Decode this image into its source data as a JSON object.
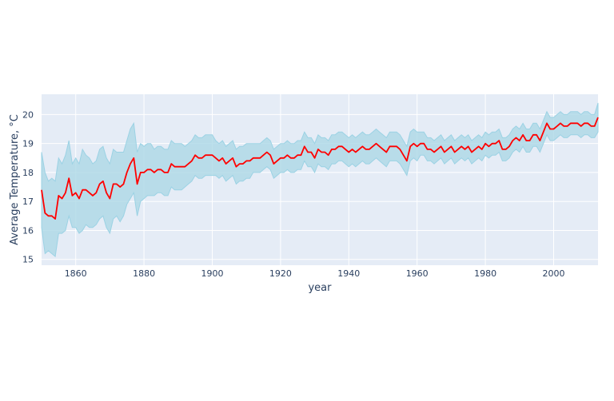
{
  "chart_data": {
    "type": "line",
    "title": "",
    "xlabel": "year",
    "ylabel": "Average Temperature, °C",
    "xlim": [
      1850,
      2013
    ],
    "ylim": [
      14.8,
      20.7
    ],
    "x_ticks": [
      1860,
      1880,
      1900,
      1920,
      1940,
      1960,
      1980,
      2000
    ],
    "y_ticks": [
      15,
      16,
      17,
      18,
      19,
      20
    ],
    "grid": true,
    "legend": "none",
    "colors": {
      "line": "#ff0000",
      "band_fill": "#add8e6",
      "band_edge": "#9bd2e4",
      "plot_bg": "#e5ecf6",
      "grid": "#ffffff"
    },
    "series": [
      {
        "role": "mean",
        "x": [
          1850,
          1851,
          1852,
          1853,
          1854,
          1855,
          1856,
          1857,
          1858,
          1859,
          1860,
          1861,
          1862,
          1863,
          1864,
          1865,
          1866,
          1867,
          1868,
          1869,
          1870,
          1871,
          1872,
          1873,
          1874,
          1875,
          1876,
          1877,
          1878,
          1879,
          1880,
          1881,
          1882,
          1883,
          1884,
          1885,
          1886,
          1887,
          1888,
          1889,
          1890,
          1891,
          1892,
          1893,
          1894,
          1895,
          1896,
          1897,
          1898,
          1899,
          1900,
          1901,
          1902,
          1903,
          1904,
          1905,
          1906,
          1907,
          1908,
          1909,
          1910,
          1911,
          1912,
          1913,
          1914,
          1915,
          1916,
          1917,
          1918,
          1919,
          1920,
          1921,
          1922,
          1923,
          1924,
          1925,
          1926,
          1927,
          1928,
          1929,
          1930,
          1931,
          1932,
          1933,
          1934,
          1935,
          1936,
          1937,
          1938,
          1939,
          1940,
          1941,
          1942,
          1943,
          1944,
          1945,
          1946,
          1947,
          1948,
          1949,
          1950,
          1951,
          1952,
          1953,
          1954,
          1955,
          1956,
          1957,
          1958,
          1959,
          1960,
          1961,
          1962,
          1963,
          1964,
          1965,
          1966,
          1967,
          1968,
          1969,
          1970,
          1971,
          1972,
          1973,
          1974,
          1975,
          1976,
          1977,
          1978,
          1979,
          1980,
          1981,
          1982,
          1983,
          1984,
          1985,
          1986,
          1987,
          1988,
          1989,
          1990,
          1991,
          1992,
          1993,
          1994,
          1995,
          1996,
          1997,
          1998,
          1999,
          2000,
          2001,
          2002,
          2003,
          2004,
          2005,
          2006,
          2007,
          2008,
          2009,
          2010,
          2011,
          2012,
          2013
        ],
        "values": [
          17.4,
          16.6,
          16.5,
          16.5,
          16.4,
          17.2,
          17.1,
          17.3,
          17.8,
          17.2,
          17.3,
          17.1,
          17.4,
          17.4,
          17.3,
          17.2,
          17.3,
          17.6,
          17.7,
          17.3,
          17.1,
          17.6,
          17.6,
          17.5,
          17.6,
          18.0,
          18.3,
          18.5,
          17.6,
          18.0,
          18.0,
          18.1,
          18.1,
          18.0,
          18.1,
          18.1,
          18.0,
          18.0,
          18.3,
          18.2,
          18.2,
          18.2,
          18.2,
          18.3,
          18.4,
          18.6,
          18.5,
          18.5,
          18.6,
          18.6,
          18.6,
          18.5,
          18.4,
          18.5,
          18.3,
          18.4,
          18.5,
          18.2,
          18.3,
          18.3,
          18.4,
          18.4,
          18.5,
          18.5,
          18.5,
          18.6,
          18.7,
          18.6,
          18.3,
          18.4,
          18.5,
          18.5,
          18.6,
          18.5,
          18.5,
          18.6,
          18.6,
          18.9,
          18.7,
          18.7,
          18.5,
          18.8,
          18.7,
          18.7,
          18.6,
          18.8,
          18.8,
          18.9,
          18.9,
          18.8,
          18.7,
          18.8,
          18.7,
          18.8,
          18.9,
          18.8,
          18.8,
          18.9,
          19.0,
          18.9,
          18.8,
          18.7,
          18.9,
          18.9,
          18.9,
          18.8,
          18.6,
          18.4,
          18.9,
          19.0,
          18.9,
          19.0,
          19.0,
          18.8,
          18.8,
          18.7,
          18.8,
          18.9,
          18.7,
          18.8,
          18.9,
          18.7,
          18.8,
          18.9,
          18.8,
          18.9,
          18.7,
          18.8,
          18.9,
          18.8,
          19.0,
          18.9,
          19.0,
          19.0,
          19.1,
          18.8,
          18.8,
          18.9,
          19.1,
          19.2,
          19.1,
          19.3,
          19.1,
          19.1,
          19.3,
          19.3,
          19.1,
          19.4,
          19.7,
          19.5,
          19.5,
          19.6,
          19.7,
          19.6,
          19.6,
          19.7,
          19.7,
          19.7,
          19.6,
          19.7,
          19.7,
          19.6,
          19.6,
          19.9
        ]
      },
      {
        "role": "upper",
        "values": [
          18.7,
          18.0,
          17.7,
          17.8,
          17.7,
          18.5,
          18.3,
          18.6,
          19.1,
          18.3,
          18.5,
          18.3,
          18.8,
          18.6,
          18.5,
          18.3,
          18.4,
          18.8,
          18.9,
          18.5,
          18.3,
          18.8,
          18.7,
          18.7,
          18.7,
          19.1,
          19.5,
          19.7,
          18.7,
          19.0,
          18.9,
          19.0,
          19.0,
          18.8,
          18.9,
          18.9,
          18.8,
          18.8,
          19.1,
          19.0,
          19.0,
          19.0,
          18.9,
          19.0,
          19.1,
          19.3,
          19.2,
          19.2,
          19.3,
          19.3,
          19.3,
          19.1,
          19.0,
          19.1,
          18.9,
          19.0,
          19.1,
          18.8,
          18.9,
          18.9,
          19.0,
          19.0,
          19.0,
          19.0,
          19.0,
          19.1,
          19.2,
          19.1,
          18.8,
          18.9,
          19.0,
          19.0,
          19.1,
          19.0,
          19.0,
          19.1,
          19.1,
          19.4,
          19.2,
          19.2,
          19.0,
          19.3,
          19.2,
          19.2,
          19.1,
          19.3,
          19.3,
          19.4,
          19.4,
          19.3,
          19.2,
          19.3,
          19.2,
          19.3,
          19.4,
          19.3,
          19.3,
          19.4,
          19.5,
          19.4,
          19.3,
          19.2,
          19.4,
          19.4,
          19.4,
          19.3,
          19.1,
          18.9,
          19.4,
          19.5,
          19.4,
          19.4,
          19.4,
          19.2,
          19.2,
          19.1,
          19.2,
          19.3,
          19.1,
          19.2,
          19.3,
          19.1,
          19.2,
          19.3,
          19.2,
          19.3,
          19.1,
          19.2,
          19.3,
          19.2,
          19.4,
          19.3,
          19.4,
          19.4,
          19.5,
          19.2,
          19.2,
          19.3,
          19.5,
          19.6,
          19.5,
          19.7,
          19.5,
          19.5,
          19.7,
          19.7,
          19.5,
          19.8,
          20.1,
          19.9,
          19.9,
          20.0,
          20.1,
          20.0,
          20.0,
          20.1,
          20.1,
          20.1,
          20.0,
          20.1,
          20.1,
          20.0,
          20.0,
          20.4
        ]
      },
      {
        "role": "lower",
        "values": [
          16.1,
          15.2,
          15.3,
          15.2,
          15.1,
          15.9,
          15.9,
          16.0,
          16.5,
          16.1,
          16.1,
          15.9,
          16.0,
          16.2,
          16.1,
          16.1,
          16.2,
          16.4,
          16.5,
          16.1,
          15.9,
          16.4,
          16.5,
          16.3,
          16.5,
          16.9,
          17.1,
          17.3,
          16.5,
          17.0,
          17.1,
          17.2,
          17.2,
          17.2,
          17.3,
          17.3,
          17.2,
          17.2,
          17.5,
          17.4,
          17.4,
          17.4,
          17.5,
          17.6,
          17.7,
          17.9,
          17.8,
          17.8,
          17.9,
          17.9,
          17.9,
          17.9,
          17.8,
          17.9,
          17.7,
          17.8,
          17.9,
          17.6,
          17.7,
          17.7,
          17.8,
          17.8,
          18.0,
          18.0,
          18.0,
          18.1,
          18.2,
          18.1,
          17.8,
          17.9,
          18.0,
          18.0,
          18.1,
          18.0,
          18.0,
          18.1,
          18.1,
          18.4,
          18.2,
          18.2,
          18.0,
          18.3,
          18.2,
          18.2,
          18.1,
          18.3,
          18.3,
          18.4,
          18.4,
          18.3,
          18.2,
          18.3,
          18.2,
          18.3,
          18.4,
          18.3,
          18.3,
          18.4,
          18.5,
          18.4,
          18.3,
          18.2,
          18.4,
          18.4,
          18.4,
          18.3,
          18.1,
          17.9,
          18.4,
          18.5,
          18.4,
          18.6,
          18.6,
          18.4,
          18.4,
          18.3,
          18.4,
          18.5,
          18.3,
          18.4,
          18.5,
          18.3,
          18.4,
          18.5,
          18.4,
          18.5,
          18.3,
          18.4,
          18.5,
          18.4,
          18.6,
          18.5,
          18.6,
          18.6,
          18.7,
          18.4,
          18.4,
          18.5,
          18.7,
          18.8,
          18.7,
          18.9,
          18.7,
          18.7,
          18.9,
          18.9,
          18.7,
          19.0,
          19.3,
          19.1,
          19.1,
          19.2,
          19.3,
          19.2,
          19.2,
          19.3,
          19.3,
          19.3,
          19.2,
          19.3,
          19.3,
          19.2,
          19.2,
          19.4
        ]
      }
    ]
  }
}
